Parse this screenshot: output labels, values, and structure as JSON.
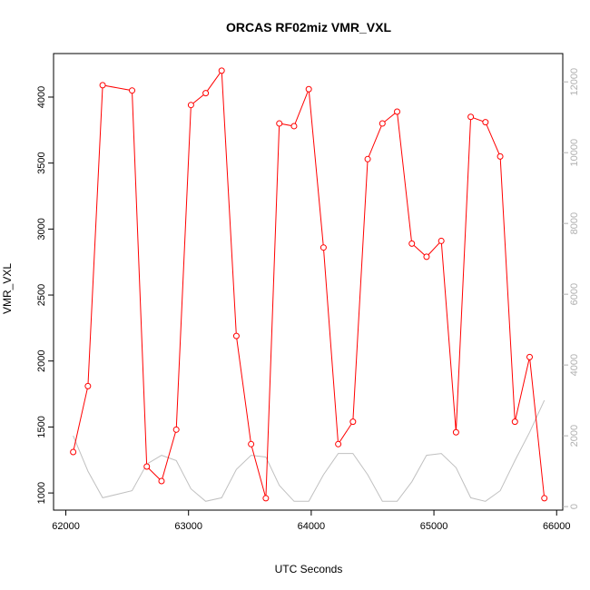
{
  "chart_data": {
    "type": "line",
    "title": "ORCAS RF02miz VMR_VXL",
    "xlabel": "UTC Seconds",
    "ylabel": "VMR_VXL",
    "xlim": [
      61900,
      66050
    ],
    "ylim": [
      870,
      4330
    ],
    "y2lim": [
      -100,
      12800
    ],
    "xticks": [
      62000,
      63000,
      64000,
      65000,
      66000
    ],
    "yticks": [
      1000,
      1500,
      2000,
      2500,
      3000,
      3500,
      4000
    ],
    "y2ticks": [
      0,
      2000,
      4000,
      6000,
      8000,
      10000,
      12000
    ],
    "grid": false,
    "series": [
      {
        "color": "#ff0000",
        "axis": "left",
        "markers": "open-circle",
        "x": [
          62060,
          62180,
          62300,
          62540,
          62660,
          62780,
          62900,
          63020,
          63140,
          63270,
          63390,
          63510,
          63630,
          63740,
          63860,
          63980,
          64100,
          64220,
          64340,
          64460,
          64580,
          64700,
          64820,
          64940,
          65060,
          65180,
          65300,
          65420,
          65540,
          65660,
          65780,
          65900
        ],
        "y": [
          1310,
          1810,
          4090,
          4050,
          1200,
          1090,
          1480,
          3940,
          4030,
          4200,
          2190,
          1370,
          960,
          3800,
          3780,
          4060,
          2860,
          1370,
          1540,
          3530,
          3800,
          3890,
          2890,
          2790,
          2910,
          1460,
          3850,
          3810,
          3550,
          1540,
          2030,
          960
        ]
      },
      {
        "color": "#c0c0c0",
        "axis": "right",
        "markers": "none",
        "x": [
          62060,
          62180,
          62300,
          62540,
          62660,
          62780,
          62900,
          63020,
          63140,
          63270,
          63390,
          63510,
          63630,
          63740,
          63860,
          63980,
          64100,
          64220,
          64340,
          64460,
          64580,
          64700,
          64820,
          64940,
          65060,
          65180,
          65300,
          65420,
          65540,
          65660,
          65780,
          65900
        ],
        "y": [
          2000,
          1000,
          250,
          450,
          1200,
          1450,
          1300,
          500,
          150,
          250,
          1050,
          1450,
          1400,
          600,
          150,
          150,
          900,
          1500,
          1500,
          900,
          150,
          150,
          700,
          1450,
          1500,
          1100,
          250,
          150,
          450,
          1300,
          2100,
          3000
        ]
      }
    ]
  }
}
